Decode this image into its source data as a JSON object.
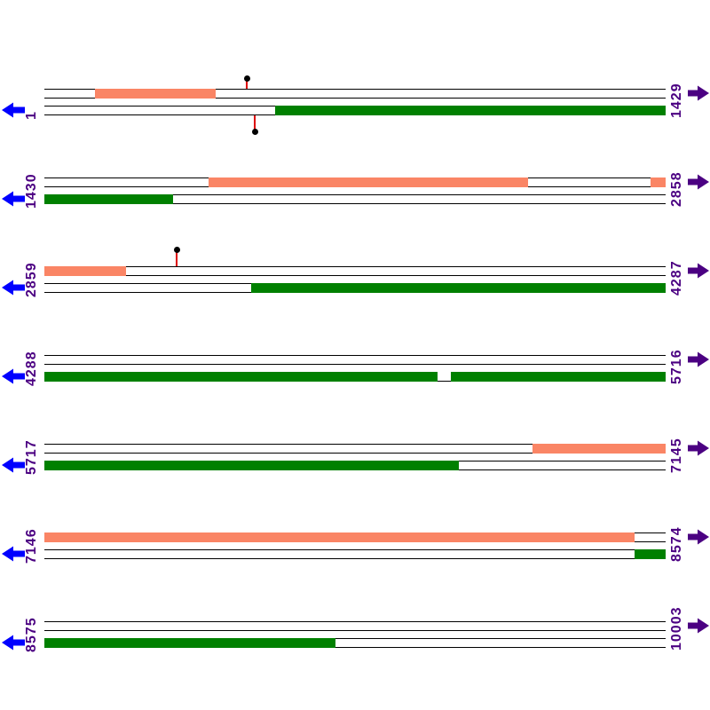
{
  "diagram": {
    "type": "linear-genome-feature-map",
    "fragment_count": 7,
    "sequence_start": "1",
    "sequence_end": "10003",
    "colors": {
      "orange_feature": "#FA8565",
      "green_feature": "#008000",
      "track_line": "#000000",
      "label_text": "#4B0082",
      "left_arrow": "#0000FF",
      "right_arrow": "#4B0082",
      "lollipop_stem": "#DD0000",
      "lollipop_head": "#000000",
      "gap": "#FFFFFF"
    },
    "rows": [
      {
        "start_label": "1",
        "end_label": "1429",
        "features": [
          {
            "kind": "box",
            "strand": "top",
            "color": "orange",
            "start": 0.0814,
            "end": 0.2757
          },
          {
            "kind": "box",
            "strand": "bottom",
            "color": "green",
            "start": 0.3714,
            "end": 1.0
          },
          {
            "kind": "lollipop",
            "side": "above",
            "pos": 0.3257,
            "drop": 12
          },
          {
            "kind": "lollipop",
            "side": "below",
            "pos": 0.3386,
            "drop": 19
          }
        ]
      },
      {
        "start_label": "1430",
        "end_label": "2858",
        "features": [
          {
            "kind": "box",
            "strand": "top",
            "color": "orange",
            "start": 0.2643,
            "end": 0.7786
          },
          {
            "kind": "box",
            "strand": "top",
            "color": "orange",
            "start": 0.9757,
            "end": 1.0
          },
          {
            "kind": "box",
            "strand": "bottom",
            "color": "green",
            "start": 0.0,
            "end": 0.2071
          }
        ]
      },
      {
        "start_label": "2859",
        "end_label": "4287",
        "features": [
          {
            "kind": "box",
            "strand": "top",
            "color": "orange",
            "start": 0.0,
            "end": 0.1314
          },
          {
            "kind": "box",
            "strand": "bottom",
            "color": "green",
            "start": 0.3329,
            "end": 1.0
          },
          {
            "kind": "lollipop",
            "side": "above",
            "pos": 0.2129,
            "drop": 19
          }
        ]
      },
      {
        "start_label": "4288",
        "end_label": "5716",
        "features": [
          {
            "kind": "box",
            "strand": "bottom",
            "color": "green",
            "start": 0.0,
            "end": 0.6329
          },
          {
            "kind": "box",
            "strand": "bottom",
            "color": "green",
            "start": 0.6543,
            "end": 1.0
          },
          {
            "kind": "gap",
            "strand": "bottom",
            "start": 0.6329,
            "end": 0.6543
          }
        ]
      },
      {
        "start_label": "5717",
        "end_label": "7145",
        "features": [
          {
            "kind": "box",
            "strand": "top",
            "color": "orange",
            "start": 0.7857,
            "end": 1.0
          },
          {
            "kind": "box",
            "strand": "bottom",
            "color": "green",
            "start": 0.0,
            "end": 0.6671
          }
        ]
      },
      {
        "start_label": "7146",
        "end_label": "8574",
        "features": [
          {
            "kind": "box",
            "strand": "top",
            "color": "orange",
            "start": 0.0,
            "end": 0.95
          },
          {
            "kind": "box",
            "strand": "bottom",
            "color": "green",
            "start": 0.95,
            "end": 1.0
          }
        ]
      },
      {
        "start_label": "8575",
        "end_label": "10003",
        "features": [
          {
            "kind": "box",
            "strand": "bottom",
            "color": "green",
            "start": 0.0,
            "end": 0.4686
          }
        ]
      }
    ]
  }
}
